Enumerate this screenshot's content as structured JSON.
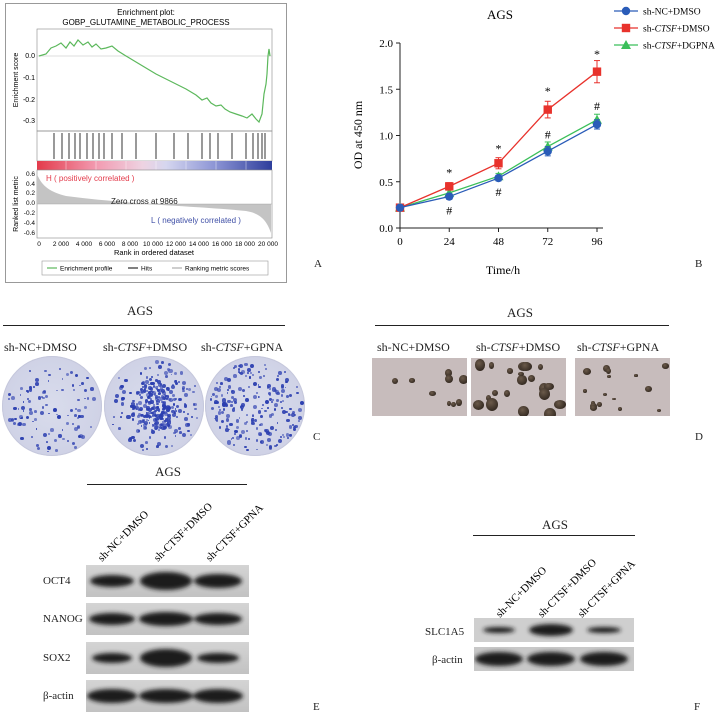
{
  "panel_labels": {
    "a": "A",
    "b": "B",
    "c": "C",
    "d": "D",
    "e": "E",
    "f": "F"
  },
  "gsea": {
    "title_line1": "Enrichment plot:",
    "title_line2": "GOBP_GLUTAMINE_METABOLIC_PROCESS",
    "ylabel_top": "Enrichment score",
    "ylabel_bottom": "Ranked list metric",
    "yticks_es": [
      "0.0",
      "-0.1",
      "-0.2",
      "-0.3"
    ],
    "yticks_metric": [
      "0.6",
      "0.4",
      "0.2",
      "0.0",
      "-0.2",
      "-0.4",
      "-0.6"
    ],
    "xticks": [
      "0",
      "2 000",
      "4 000",
      "6 000",
      "8 000",
      "10 000",
      "12 000",
      "14 000",
      "16 000",
      "18 000",
      "20 000"
    ],
    "xlabel": "Rank in ordered dataset",
    "h_label": "H ( positively correlated )",
    "l_label": "L ( negatively correlated )",
    "zero_cross": "Zero cross at 9866",
    "legend": [
      "Enrichment profile",
      "Hits",
      "Ranking metric scores"
    ],
    "colors": {
      "profile": "#5cb85c",
      "hits": "#000000",
      "metric": "#bdbdbd",
      "pos": "#e33b4b",
      "neg": "#3f4fa6"
    }
  },
  "chart_data": {
    "type": "line",
    "title": "AGS",
    "xlabel": "Time/h",
    "ylabel": "OD at 450 nm",
    "x": [
      0,
      24,
      48,
      72,
      96
    ],
    "xlim": [
      0,
      96
    ],
    "ylim": [
      0.0,
      2.0
    ],
    "yticks": [
      "0.0",
      "0.5",
      "1.0",
      "1.5",
      "2.0"
    ],
    "xticks": [
      "0",
      "24",
      "48",
      "72",
      "96"
    ],
    "series": [
      {
        "name": "sh-NC+DMSO",
        "name_parts": [
          "sh-NC+DMSO"
        ],
        "color": "#2a5cb8",
        "marker": "circle",
        "values": [
          0.22,
          0.34,
          0.54,
          0.83,
          1.12
        ],
        "errors": [
          0.02,
          0.03,
          0.03,
          0.05,
          0.05
        ]
      },
      {
        "name": "sh-CTSF+DMSO",
        "name_parts": [
          "sh-",
          "CTSF",
          "+DMSO"
        ],
        "color": "#e8322c",
        "marker": "square",
        "values": [
          0.22,
          0.45,
          0.7,
          1.28,
          1.69
        ],
        "errors": [
          0.02,
          0.04,
          0.06,
          0.09,
          0.12
        ]
      },
      {
        "name": "sh-CTSF+DGPNA",
        "name_parts": [
          "sh-",
          "CTSF",
          "+DGPNA"
        ],
        "color": "#3bbf5a",
        "marker": "triangle",
        "values": [
          0.22,
          0.38,
          0.56,
          0.88,
          1.17
        ],
        "errors": [
          0.02,
          0.03,
          0.03,
          0.05,
          0.06
        ]
      }
    ],
    "annotations": [
      {
        "x": 24,
        "text": "*",
        "value": 0.6
      },
      {
        "x": 48,
        "text": "*",
        "value": 0.86
      },
      {
        "x": 72,
        "text": "*",
        "value": 1.48
      },
      {
        "x": 96,
        "text": "*",
        "value": 1.88
      },
      {
        "x": 24,
        "text": "#",
        "value": 0.19
      },
      {
        "x": 48,
        "text": "#",
        "value": 0.39
      },
      {
        "x": 72,
        "text": "#",
        "value": 1.01
      },
      {
        "x": 96,
        "text": "#",
        "value": 1.32
      }
    ]
  },
  "colony": {
    "title": "AGS",
    "labels": [
      {
        "pre": "sh-NC+DMSO",
        "ital": "",
        "post": ""
      },
      {
        "pre": "sh-",
        "ital": "CTSF",
        "post": "+DMSO"
      },
      {
        "pre": "sh-",
        "ital": "CTSF",
        "post": "+GPNA"
      }
    ]
  },
  "sphere": {
    "title": "AGS",
    "labels": [
      {
        "pre": "sh-NC+DMSO",
        "ital": "",
        "post": ""
      },
      {
        "pre": "sh-",
        "ital": "CTSF",
        "post": "+DMSO"
      },
      {
        "pre": "sh-",
        "ital": "CTSF",
        "post": "+GPNA"
      }
    ]
  },
  "blot_e": {
    "title": "AGS",
    "lanes": [
      "sh-NC+DMSO",
      "sh-CTSF+DMSO",
      "sh-CTSF+GPNA"
    ],
    "proteins": [
      "OCT4",
      "NANOG",
      "SOX2",
      "β-actin"
    ]
  },
  "blot_f": {
    "title": "AGS",
    "lanes": [
      "sh-NC+DMSO",
      "sh-CTSF+DMSO",
      "sh-CTSF+GPNA"
    ],
    "proteins": [
      "SLC1A5",
      "β-actin"
    ]
  }
}
